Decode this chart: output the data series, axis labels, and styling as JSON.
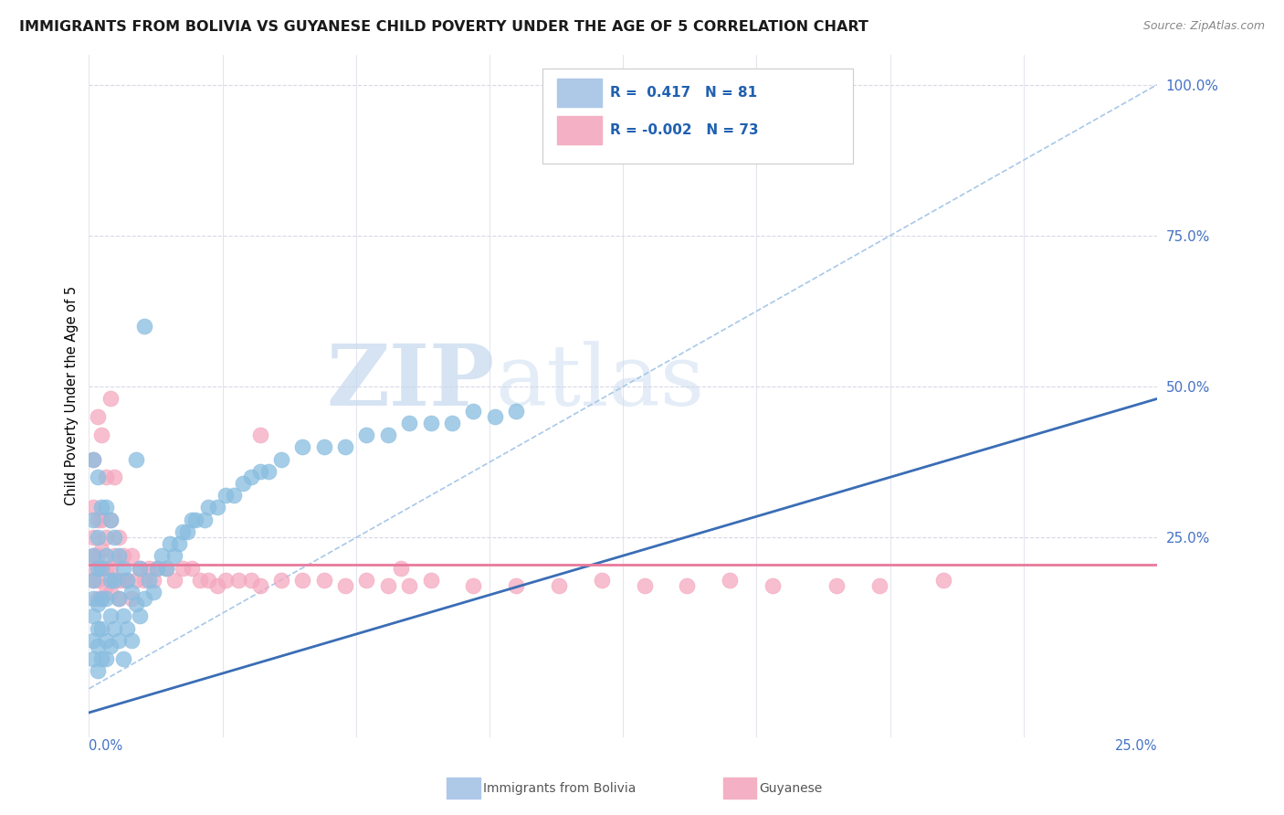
{
  "title": "IMMIGRANTS FROM BOLIVIA VS GUYANESE CHILD POVERTY UNDER THE AGE OF 5 CORRELATION CHART",
  "source": "Source: ZipAtlas.com",
  "ylabel": "Child Poverty Under the Age of 5",
  "xlim": [
    0.0,
    0.25
  ],
  "ylim": [
    -0.08,
    1.05
  ],
  "bolivia_color": "#89bde0",
  "bolivia_edge_color": "#5a9fc9",
  "guyanese_color": "#f4a8bf",
  "guyanese_edge_color": "#e07898",
  "bolivia_line_color": "#3a6db5",
  "guyanese_line_color": "#e8799a",
  "refline_color": "#a8c8e8",
  "grid_color": "#d8d8e8",
  "background_color": "#ffffff",
  "ytick_color": "#4472c4",
  "xtick_color": "#4472c4",
  "R_bolivia": 0.417,
  "N_bolivia": 81,
  "R_guyanese": -0.002,
  "N_guyanese": 73,
  "bolivia_x": [
    0.001,
    0.001,
    0.001,
    0.001,
    0.001,
    0.001,
    0.001,
    0.001,
    0.002,
    0.002,
    0.002,
    0.002,
    0.002,
    0.002,
    0.002,
    0.003,
    0.003,
    0.003,
    0.003,
    0.003,
    0.004,
    0.004,
    0.004,
    0.004,
    0.004,
    0.005,
    0.005,
    0.005,
    0.005,
    0.006,
    0.006,
    0.006,
    0.007,
    0.007,
    0.007,
    0.008,
    0.008,
    0.008,
    0.009,
    0.009,
    0.01,
    0.01,
    0.011,
    0.012,
    0.012,
    0.013,
    0.014,
    0.015,
    0.016,
    0.017,
    0.018,
    0.019,
    0.02,
    0.021,
    0.022,
    0.023,
    0.024,
    0.025,
    0.027,
    0.028,
    0.03,
    0.032,
    0.034,
    0.036,
    0.038,
    0.04,
    0.042,
    0.045,
    0.05,
    0.055,
    0.06,
    0.065,
    0.07,
    0.075,
    0.08,
    0.085,
    0.09,
    0.095,
    0.1,
    0.011,
    0.013
  ],
  "bolivia_y": [
    0.05,
    0.08,
    0.12,
    0.15,
    0.18,
    0.22,
    0.28,
    0.38,
    0.03,
    0.07,
    0.1,
    0.14,
    0.2,
    0.25,
    0.35,
    0.05,
    0.1,
    0.15,
    0.2,
    0.3,
    0.05,
    0.08,
    0.15,
    0.22,
    0.3,
    0.07,
    0.12,
    0.18,
    0.28,
    0.1,
    0.18,
    0.25,
    0.08,
    0.15,
    0.22,
    0.05,
    0.12,
    0.2,
    0.1,
    0.18,
    0.08,
    0.16,
    0.14,
    0.12,
    0.2,
    0.15,
    0.18,
    0.16,
    0.2,
    0.22,
    0.2,
    0.24,
    0.22,
    0.24,
    0.26,
    0.26,
    0.28,
    0.28,
    0.28,
    0.3,
    0.3,
    0.32,
    0.32,
    0.34,
    0.35,
    0.36,
    0.36,
    0.38,
    0.4,
    0.4,
    0.4,
    0.42,
    0.42,
    0.44,
    0.44,
    0.44,
    0.46,
    0.45,
    0.46,
    0.38,
    0.6
  ],
  "guyanese_x": [
    0.001,
    0.001,
    0.001,
    0.001,
    0.001,
    0.002,
    0.002,
    0.002,
    0.002,
    0.003,
    0.003,
    0.003,
    0.003,
    0.004,
    0.004,
    0.004,
    0.005,
    0.005,
    0.005,
    0.006,
    0.006,
    0.007,
    0.007,
    0.007,
    0.008,
    0.008,
    0.009,
    0.01,
    0.01,
    0.011,
    0.012,
    0.013,
    0.014,
    0.015,
    0.016,
    0.018,
    0.02,
    0.022,
    0.024,
    0.026,
    0.028,
    0.03,
    0.032,
    0.035,
    0.038,
    0.04,
    0.045,
    0.05,
    0.055,
    0.06,
    0.065,
    0.07,
    0.075,
    0.08,
    0.09,
    0.1,
    0.11,
    0.12,
    0.13,
    0.14,
    0.15,
    0.16,
    0.175,
    0.185,
    0.2,
    0.001,
    0.002,
    0.003,
    0.004,
    0.005,
    0.006,
    0.04,
    0.073
  ],
  "guyanese_y": [
    0.18,
    0.2,
    0.22,
    0.25,
    0.3,
    0.15,
    0.18,
    0.22,
    0.28,
    0.15,
    0.2,
    0.23,
    0.28,
    0.17,
    0.2,
    0.25,
    0.16,
    0.2,
    0.28,
    0.18,
    0.22,
    0.15,
    0.18,
    0.25,
    0.18,
    0.22,
    0.18,
    0.15,
    0.22,
    0.18,
    0.2,
    0.18,
    0.2,
    0.18,
    0.2,
    0.2,
    0.18,
    0.2,
    0.2,
    0.18,
    0.18,
    0.17,
    0.18,
    0.18,
    0.18,
    0.17,
    0.18,
    0.18,
    0.18,
    0.17,
    0.18,
    0.17,
    0.17,
    0.18,
    0.17,
    0.17,
    0.17,
    0.18,
    0.17,
    0.17,
    0.18,
    0.17,
    0.17,
    0.17,
    0.18,
    0.38,
    0.45,
    0.42,
    0.35,
    0.48,
    0.35,
    0.42,
    0.2
  ],
  "bolivia_trendline": [
    [
      -0.005,
      -0.05
    ],
    [
      0.25,
      0.48
    ]
  ],
  "guyanese_trendline": [
    [
      -0.005,
      0.205
    ],
    [
      0.25,
      0.205
    ]
  ],
  "refline": [
    [
      0.0,
      0.0
    ],
    [
      0.25,
      1.0
    ]
  ]
}
